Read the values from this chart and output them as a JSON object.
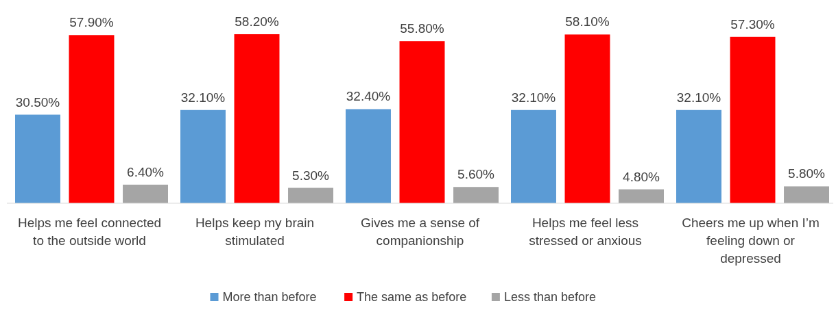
{
  "chart_data": {
    "type": "bar",
    "categories": [
      "Helps me feel connected to the outside world",
      "Helps keep my brain stimulated",
      "Gives me a sense of companionship",
      "Helps me feel less stressed or anxious",
      "Cheers me up when I’m feeling down or depressed"
    ],
    "series": [
      {
        "name": "More than before",
        "color": "#5b9bd5",
        "values": [
          30.5,
          32.1,
          32.4,
          32.1,
          32.1
        ],
        "value_labels": [
          "30.50%",
          "32.10%",
          "32.40%",
          "32.10%",
          "32.10%"
        ]
      },
      {
        "name": "The same as before",
        "color": "#ff0000",
        "values": [
          57.9,
          58.2,
          55.8,
          58.1,
          57.3
        ],
        "value_labels": [
          "57.90%",
          "58.20%",
          "55.80%",
          "58.10%",
          "57.30%"
        ]
      },
      {
        "name": "Less than before",
        "color": "#a5a5a5",
        "values": [
          6.4,
          5.3,
          5.6,
          4.8,
          5.8
        ],
        "value_labels": [
          "6.40%",
          "5.30%",
          "5.60%",
          "4.80%",
          "5.80%"
        ]
      }
    ],
    "legend": "bottom",
    "grid": false
  }
}
